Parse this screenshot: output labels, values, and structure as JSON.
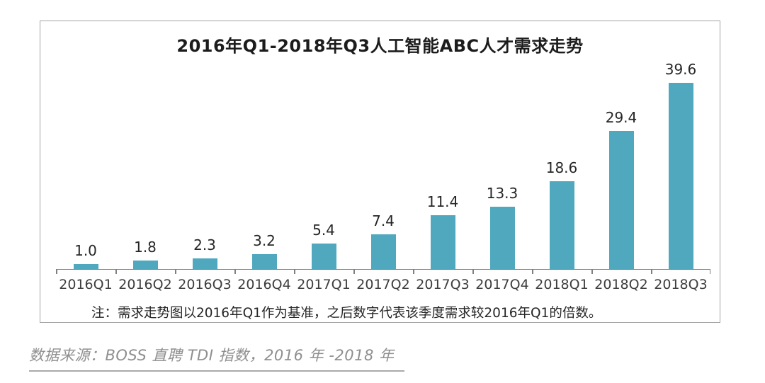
{
  "chart_data": {
    "type": "bar",
    "title": "2016年Q1-2018年Q3人工智能ABC人才需求走势",
    "categories": [
      "2016Q1",
      "2016Q2",
      "2016Q3",
      "2016Q4",
      "2017Q1",
      "2017Q2",
      "2017Q3",
      "2017Q4",
      "2018Q1",
      "2018Q2",
      "2018Q3"
    ],
    "values": [
      1.0,
      1.8,
      2.3,
      3.2,
      5.4,
      7.4,
      11.4,
      13.3,
      18.6,
      29.4,
      39.6
    ],
    "value_labels": [
      "1.0",
      "1.8",
      "2.3",
      "3.2",
      "5.4",
      "7.4",
      "11.4",
      "13.3",
      "18.6",
      "29.4",
      "39.6"
    ],
    "xlabel": "",
    "ylabel": "",
    "ylim": [
      0,
      42
    ],
    "grid": false,
    "legend_position": "none",
    "note": "注：需求走势图以2016年Q1作为基准，之后数字代表该季度需求较2016年Q1的倍数。"
  },
  "source_caption": "数据来源：BOSS 直聘 TDI 指数，2016 年 -2018 年",
  "colors": {
    "bar": "#4fa8be",
    "axis": "#808080",
    "frame_border": "#a3a3a3",
    "title_text": "#1c1c1c",
    "value_label_text": "#262626",
    "x_label_text": "#3d3d3d",
    "source_text": "#8f8f8f"
  }
}
